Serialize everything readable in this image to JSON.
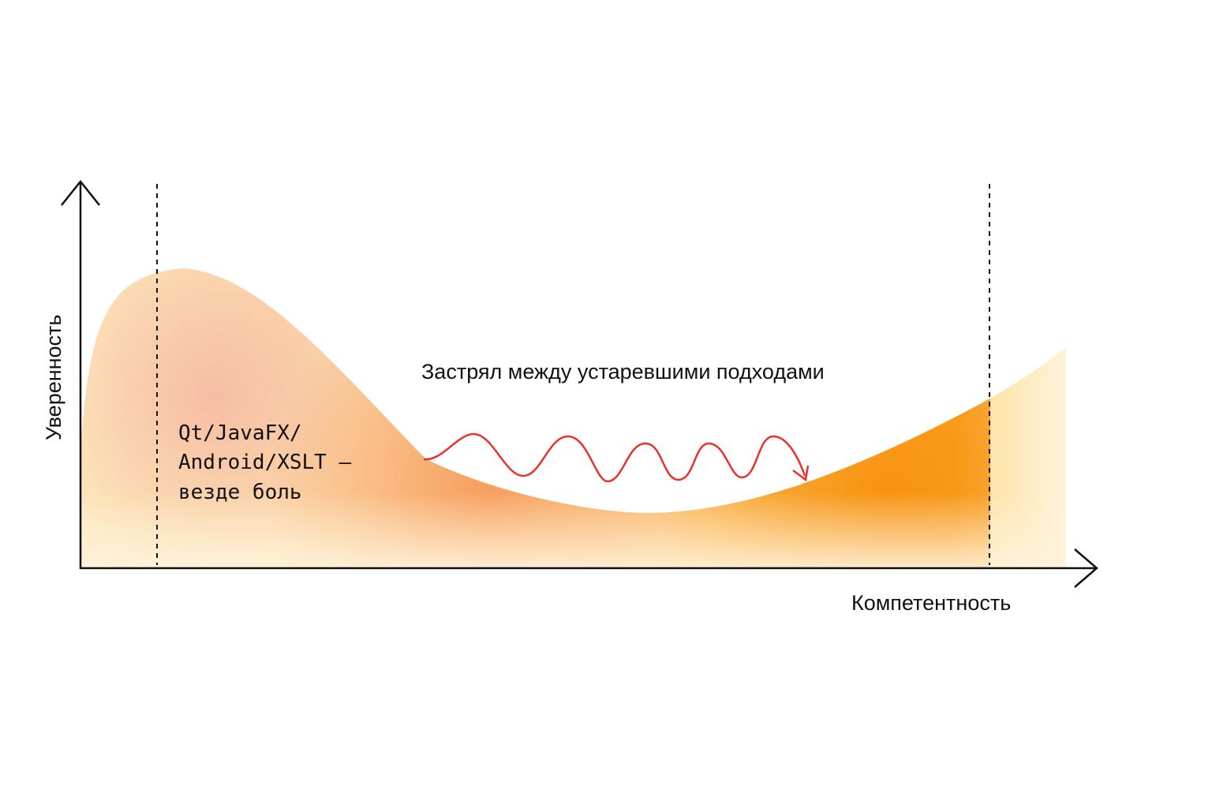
{
  "chart_data": {
    "type": "area",
    "title": "",
    "xlabel": "Компетентность",
    "ylabel": "Уверенность",
    "annotations": {
      "plateau": "Застрял между устаревшими подходами",
      "peak_lines": [
        "Qt/JavaFX/",
        "Android/XSLT –",
        "везде боль"
      ]
    },
    "grid": false,
    "legend": "none"
  },
  "colors": {
    "axis": "#111111",
    "curve_light": "#fde4b3",
    "curve_peak": "#f7b899",
    "curve_mid": "#f6a060",
    "curve_deep": "#f89a1c",
    "wave": "#e8322a"
  },
  "icons": {
    "y_axis_arrow": "arrow-up-icon",
    "x_axis_arrow": "arrow-right-icon",
    "wave_arrow": "arrow-down-right-icon"
  }
}
